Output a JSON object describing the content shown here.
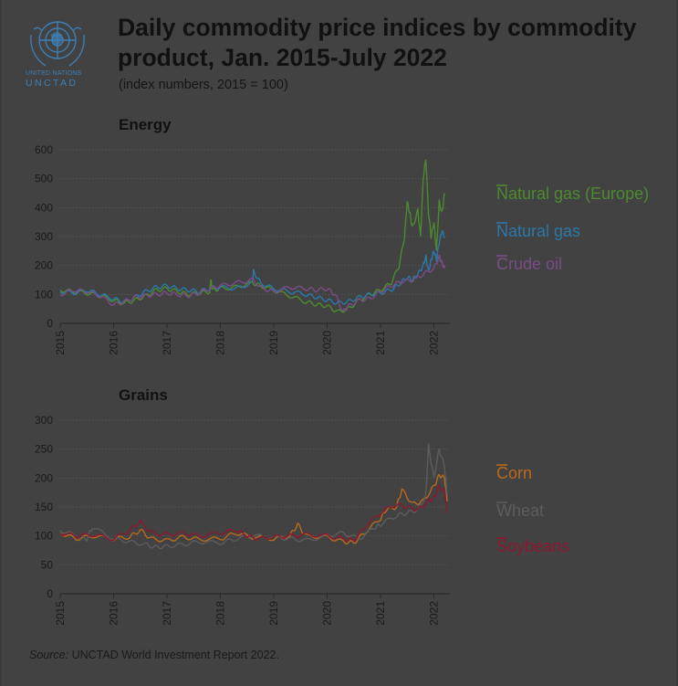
{
  "header": {
    "logo_line1": "UNITED NATIONS",
    "logo_line2": "UNCTAD",
    "title_line1": "Daily commodity price indices by commodity",
    "title_line2": "product, Jan. 2015-July 2022",
    "subtitle": "(index numbers, 2015 = 100)"
  },
  "footer": {
    "source_label": "Source:",
    "source_text": " UNCTAD World Investment Report 2022."
  },
  "colors": {
    "green": "#4c8a2f",
    "blue": "#2a78a8",
    "purple": "#7a4c86",
    "orange": "#b86a1c",
    "gray": "#5c5c5c",
    "crimson": "#8c1830",
    "grid": "#555555"
  },
  "chart_data": [
    {
      "type": "line",
      "title": "Energy",
      "xlabel": "",
      "ylabel": "",
      "x_ticks": [
        "2015",
        "2016",
        "2017",
        "2018",
        "2019",
        "2020",
        "2021",
        "2022"
      ],
      "y_ticks": [
        0,
        100,
        200,
        300,
        400,
        500,
        600
      ],
      "ylim": [
        0,
        600
      ],
      "xlim": [
        2015.0,
        2022.3
      ],
      "grid": true,
      "legend_placement": "right",
      "series": [
        {
          "name": "Natural gas (Europe)",
          "color": "#4c8a2f",
          "x": [
            2015.0,
            2015.25,
            2015.5,
            2015.75,
            2016.0,
            2016.2,
            2016.4,
            2016.6,
            2016.8,
            2017.0,
            2017.2,
            2017.4,
            2017.6,
            2017.8,
            2017.82,
            2017.85,
            2018.0,
            2018.3,
            2018.6,
            2018.75,
            2019.0,
            2019.3,
            2019.6,
            2019.8,
            2020.0,
            2020.2,
            2020.4,
            2020.6,
            2020.8,
            2021.0,
            2021.2,
            2021.35,
            2021.45,
            2021.5,
            2021.55,
            2021.6,
            2021.7,
            2021.75,
            2021.8,
            2021.85,
            2021.9,
            2021.95,
            2022.0,
            2022.05,
            2022.1,
            2022.15,
            2022.2
          ],
          "y": [
            115,
            110,
            105,
            95,
            80,
            70,
            80,
            95,
            115,
            120,
            110,
            100,
            105,
            110,
            150,
            115,
            120,
            125,
            140,
            130,
            115,
            95,
            75,
            65,
            60,
            40,
            50,
            80,
            100,
            115,
            140,
            200,
            300,
            420,
            380,
            330,
            390,
            300,
            500,
            570,
            380,
            300,
            350,
            250,
            420,
            380,
            450
          ]
        },
        {
          "name": "Natural gas",
          "color": "#2a78a8",
          "x": [
            2015.0,
            2015.25,
            2015.5,
            2015.75,
            2016.0,
            2016.2,
            2016.4,
            2016.6,
            2016.8,
            2017.0,
            2017.2,
            2017.4,
            2017.6,
            2017.8,
            2018.0,
            2018.3,
            2018.6,
            2018.62,
            2018.75,
            2019.0,
            2019.3,
            2019.6,
            2019.8,
            2020.0,
            2020.2,
            2020.4,
            2020.6,
            2020.8,
            2021.0,
            2021.2,
            2021.35,
            2021.5,
            2021.6,
            2021.7,
            2021.8,
            2021.85,
            2021.9,
            2021.95,
            2022.0,
            2022.05,
            2022.1,
            2022.15,
            2022.2
          ],
          "y": [
            110,
            105,
            115,
            100,
            85,
            75,
            90,
            110,
            125,
            130,
            120,
            115,
            110,
            120,
            125,
            120,
            140,
            180,
            140,
            120,
            110,
            100,
            90,
            80,
            70,
            75,
            90,
            100,
            105,
            115,
            135,
            160,
            150,
            170,
            200,
            230,
            180,
            220,
            250,
            220,
            280,
            320,
            300
          ]
        },
        {
          "name": "Crude oil",
          "color": "#7a4c86",
          "x": [
            2015.0,
            2015.25,
            2015.5,
            2015.75,
            2016.0,
            2016.2,
            2016.4,
            2016.6,
            2016.8,
            2017.0,
            2017.2,
            2017.4,
            2017.6,
            2017.8,
            2018.0,
            2018.3,
            2018.6,
            2018.8,
            2019.0,
            2019.3,
            2019.6,
            2019.8,
            2020.0,
            2020.15,
            2020.3,
            2020.4,
            2020.6,
            2020.8,
            2021.0,
            2021.2,
            2021.4,
            2021.6,
            2021.8,
            2022.0,
            2022.1,
            2022.15,
            2022.2
          ],
          "y": [
            100,
            115,
            110,
            95,
            65,
            75,
            90,
            95,
            100,
            105,
            100,
            95,
            105,
            120,
            130,
            140,
            150,
            120,
            110,
            125,
            120,
            115,
            120,
            100,
            40,
            60,
            80,
            85,
            110,
            130,
            145,
            150,
            170,
            190,
            230,
            210,
            190
          ]
        }
      ]
    },
    {
      "type": "line",
      "title": "Grains",
      "xlabel": "",
      "ylabel": "",
      "x_ticks": [
        "2015",
        "2016",
        "2017",
        "2018",
        "2019",
        "2020",
        "2021",
        "2022"
      ],
      "y_ticks": [
        0,
        50,
        100,
        150,
        200,
        250,
        300
      ],
      "ylim": [
        0,
        300
      ],
      "xlim": [
        2015.0,
        2022.3
      ],
      "grid": true,
      "legend_placement": "right",
      "series": [
        {
          "name": "Corn",
          "color": "#b86a1c",
          "x": [
            2015.0,
            2015.3,
            2015.6,
            2016.0,
            2016.3,
            2016.5,
            2016.7,
            2017.0,
            2017.3,
            2017.6,
            2018.0,
            2018.3,
            2018.6,
            2019.0,
            2019.3,
            2019.45,
            2019.6,
            2020.0,
            2020.3,
            2020.5,
            2020.7,
            2021.0,
            2021.1,
            2021.3,
            2021.4,
            2021.6,
            2021.8,
            2022.0,
            2022.1,
            2022.2,
            2022.25
          ],
          "y": [
            105,
            95,
            100,
            95,
            98,
            110,
            95,
            92,
            98,
            94,
            95,
            105,
            98,
            95,
            100,
            120,
            100,
            98,
            90,
            88,
            105,
            130,
            145,
            150,
            180,
            155,
            160,
            185,
            205,
            200,
            160
          ]
        },
        {
          "name": "Wheat",
          "color": "#5c5c5c",
          "x": [
            2015.0,
            2015.3,
            2015.5,
            2015.6,
            2016.0,
            2016.3,
            2016.6,
            2016.8,
            2017.0,
            2017.3,
            2017.6,
            2018.0,
            2018.3,
            2018.6,
            2019.0,
            2019.3,
            2019.6,
            2020.0,
            2020.3,
            2020.6,
            2020.9,
            2021.0,
            2021.3,
            2021.5,
            2021.7,
            2021.85,
            2021.9,
            2022.0,
            2022.1,
            2022.2,
            2022.25
          ],
          "y": [
            110,
            100,
            95,
            115,
            95,
            90,
            85,
            80,
            82,
            85,
            90,
            88,
            95,
            100,
            98,
            95,
            92,
            100,
            105,
            95,
            115,
            120,
            135,
            140,
            145,
            170,
            255,
            200,
            250,
            220,
            170
          ]
        },
        {
          "name": "Soybeans",
          "color": "#8c1830",
          "x": [
            2015.0,
            2015.3,
            2015.6,
            2016.0,
            2016.3,
            2016.5,
            2016.7,
            2017.0,
            2017.3,
            2017.6,
            2018.0,
            2018.3,
            2018.5,
            2018.7,
            2019.0,
            2019.3,
            2019.6,
            2020.0,
            2020.3,
            2020.5,
            2020.7,
            2021.0,
            2021.3,
            2021.5,
            2021.7,
            2021.9,
            2022.0,
            2022.1,
            2022.2,
            2022.25
          ],
          "y": [
            105,
            100,
            102,
            95,
            110,
            125,
            105,
            102,
            105,
            100,
            105,
            110,
            100,
            95,
            98,
            100,
            102,
            100,
            95,
            92,
            115,
            140,
            155,
            150,
            145,
            160,
            165,
            185,
            175,
            140
          ]
        }
      ]
    }
  ]
}
